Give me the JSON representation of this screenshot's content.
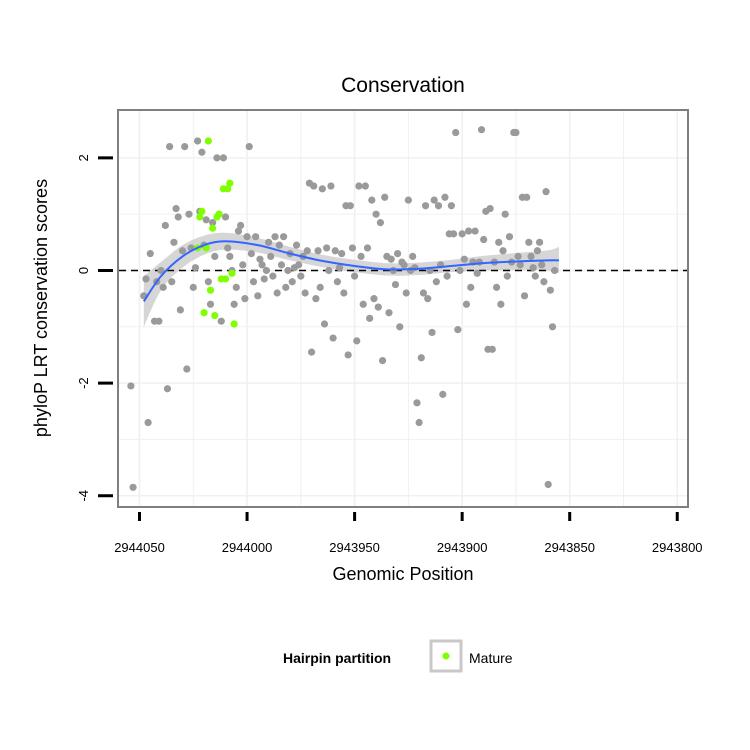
{
  "chart_data": {
    "type": "scatter",
    "title": "Conservation",
    "xlabel": "Genomic Position",
    "ylabel": "phyloP LRT conservation scores",
    "x_reversed": true,
    "xlim": [
      2944060,
      2943795
    ],
    "ylim": [
      -4.2,
      2.85
    ],
    "x_ticks": [
      2944050,
      2944000,
      2943950,
      2943900,
      2943850,
      2943800
    ],
    "x_tick_labels": [
      "2944050",
      "2944000",
      "2943950",
      "2943900",
      "2943850",
      "2943800"
    ],
    "y_ticks": [
      -4,
      -2,
      0,
      2
    ],
    "y_tick_labels": [
      "-4",
      "-2",
      "0",
      "2"
    ],
    "reference_line": {
      "y": 0,
      "style": "dashed",
      "color": "#000000"
    },
    "grid": true,
    "legend": {
      "title": "Hairpin partition",
      "placement": "bottom",
      "entries": [
        "Mature"
      ]
    },
    "colors": {
      "other": "#9a9a9a",
      "mature": "#7fff00",
      "smooth": "#3366ff",
      "band": "#c8c8c8",
      "panel_border": "#7f7f7f"
    },
    "series": [
      {
        "name": "",
        "color": "#9a9a9a",
        "points": [
          [
            2944048,
            -0.45
          ],
          [
            2944047,
            -0.15
          ],
          [
            2944046,
            -2.7
          ],
          [
            2944045,
            0.3
          ],
          [
            2944043,
            -0.9
          ],
          [
            2944042,
            -0.2
          ],
          [
            2944041,
            -0.9
          ],
          [
            2944040,
            0.0
          ],
          [
            2944039,
            -0.3
          ],
          [
            2944038,
            0.8
          ],
          [
            2944037,
            -2.1
          ],
          [
            2944036,
            2.2
          ],
          [
            2944035,
            -0.2
          ],
          [
            2944034,
            0.5
          ],
          [
            2944033,
            1.1
          ],
          [
            2944032,
            0.95
          ],
          [
            2944031,
            -0.7
          ],
          [
            2944030,
            0.35
          ],
          [
            2944029,
            2.2
          ],
          [
            2944028,
            -1.75
          ],
          [
            2944027,
            1.0
          ],
          [
            2944026,
            0.4
          ],
          [
            2944025,
            -0.3
          ],
          [
            2944024,
            0.05
          ],
          [
            2944023,
            2.3
          ],
          [
            2944022,
            1.05
          ],
          [
            2944021,
            2.1
          ],
          [
            2944020,
            0.45
          ],
          [
            2944019,
            0.9
          ],
          [
            2944018,
            -0.2
          ],
          [
            2944017,
            -0.6
          ],
          [
            2944016,
            0.85
          ],
          [
            2944015,
            0.25
          ],
          [
            2944014,
            2.0
          ],
          [
            2944013,
            1.0
          ],
          [
            2944012,
            -0.9
          ],
          [
            2944011,
            2.0
          ],
          [
            2944010,
            0.95
          ],
          [
            2944009,
            0.4
          ],
          [
            2944008,
            0.25
          ],
          [
            2944007,
            0.0
          ],
          [
            2944006,
            -0.6
          ],
          [
            2944005,
            -0.3
          ],
          [
            2944004,
            0.7
          ],
          [
            2944003,
            0.8
          ],
          [
            2944002,
            0.1
          ],
          [
            2944001,
            -0.5
          ],
          [
            2944000,
            0.6
          ],
          [
            2943999,
            2.2
          ],
          [
            2943998,
            0.3
          ],
          [
            2943997,
            -0.2
          ],
          [
            2943996,
            0.6
          ],
          [
            2943995,
            -0.45
          ],
          [
            2943994,
            0.2
          ],
          [
            2943993,
            0.1
          ],
          [
            2943992,
            -0.15
          ],
          [
            2943991,
            0.0
          ],
          [
            2943990,
            0.5
          ],
          [
            2943989,
            0.25
          ],
          [
            2943988,
            -0.1
          ],
          [
            2943987,
            0.6
          ],
          [
            2943986,
            -0.4
          ],
          [
            2943985,
            0.45
          ],
          [
            2943984,
            0.1
          ],
          [
            2943983,
            0.6
          ],
          [
            2943982,
            -0.3
          ],
          [
            2943981,
            0.0
          ],
          [
            2943980,
            0.3
          ],
          [
            2943979,
            -0.2
          ],
          [
            2943978,
            0.05
          ],
          [
            2943977,
            0.45
          ],
          [
            2943976,
            0.1
          ],
          [
            2943975,
            -0.1
          ],
          [
            2943974,
            0.25
          ],
          [
            2943973,
            -0.4
          ],
          [
            2943972,
            0.35
          ],
          [
            2943971,
            1.55
          ],
          [
            2943970,
            -1.45
          ],
          [
            2943969,
            1.5
          ],
          [
            2943968,
            -0.5
          ],
          [
            2943967,
            0.35
          ],
          [
            2943966,
            -0.3
          ],
          [
            2943965,
            1.45
          ],
          [
            2943964,
            -0.95
          ],
          [
            2943963,
            0.4
          ],
          [
            2943962,
            0.0
          ],
          [
            2943961,
            1.5
          ],
          [
            2943960,
            -1.2
          ],
          [
            2943959,
            0.35
          ],
          [
            2943958,
            -0.2
          ],
          [
            2943957,
            0.05
          ],
          [
            2943956,
            0.3
          ],
          [
            2943955,
            -0.4
          ],
          [
            2943954,
            1.15
          ],
          [
            2943953,
            -1.5
          ],
          [
            2943952,
            1.15
          ],
          [
            2943951,
            0.4
          ],
          [
            2943950,
            -0.1
          ],
          [
            2943949,
            -1.25
          ],
          [
            2943948,
            1.5
          ],
          [
            2943947,
            0.25
          ],
          [
            2943946,
            -0.6
          ],
          [
            2943945,
            1.5
          ],
          [
            2943944,
            0.4
          ],
          [
            2943943,
            -0.85
          ],
          [
            2943942,
            1.25
          ],
          [
            2943941,
            -0.5
          ],
          [
            2943940,
            1.0
          ],
          [
            2943939,
            -0.65
          ],
          [
            2943938,
            0.85
          ],
          [
            2943937,
            -1.6
          ],
          [
            2943936,
            1.3
          ],
          [
            2943935,
            0.25
          ],
          [
            2943934,
            -0.75
          ],
          [
            2943933,
            0.2
          ],
          [
            2943932,
            0.0
          ],
          [
            2943931,
            -0.25
          ],
          [
            2943930,
            0.3
          ],
          [
            2943929,
            -1.0
          ],
          [
            2943928,
            0.15
          ],
          [
            2943927,
            0.1
          ],
          [
            2943926,
            -0.4
          ],
          [
            2943925,
            1.25
          ],
          [
            2943924,
            0.0
          ],
          [
            2943923,
            0.25
          ],
          [
            2943922,
            0.05
          ],
          [
            2943921,
            -2.35
          ],
          [
            2943920,
            -2.7
          ],
          [
            2943919,
            -1.55
          ],
          [
            2943918,
            -0.4
          ],
          [
            2943917,
            1.15
          ],
          [
            2943916,
            -0.5
          ],
          [
            2943915,
            0.0
          ],
          [
            2943914,
            -1.1
          ],
          [
            2943913,
            1.25
          ],
          [
            2943912,
            -0.2
          ],
          [
            2943911,
            1.15
          ],
          [
            2943910,
            0.1
          ],
          [
            2943909,
            -2.2
          ],
          [
            2943908,
            1.3
          ],
          [
            2943907,
            -0.1
          ],
          [
            2943906,
            0.65
          ],
          [
            2943905,
            1.15
          ],
          [
            2943904,
            0.65
          ],
          [
            2943903,
            2.45
          ],
          [
            2943902,
            -1.05
          ],
          [
            2943901,
            0.0
          ],
          [
            2943900,
            0.65
          ],
          [
            2943899,
            0.2
          ],
          [
            2943898,
            -0.6
          ],
          [
            2943897,
            0.7
          ],
          [
            2943896,
            -0.3
          ],
          [
            2943895,
            0.15
          ],
          [
            2943894,
            0.7
          ],
          [
            2943893,
            -0.05
          ],
          [
            2943892,
            0.15
          ],
          [
            2943891,
            2.5
          ],
          [
            2943890,
            0.55
          ],
          [
            2943889,
            1.05
          ],
          [
            2943888,
            -1.4
          ],
          [
            2943887,
            1.1
          ],
          [
            2943886,
            -1.4
          ],
          [
            2943885,
            0.15
          ],
          [
            2943884,
            -0.3
          ],
          [
            2943883,
            0.5
          ],
          [
            2943882,
            -0.6
          ],
          [
            2943881,
            0.35
          ],
          [
            2943880,
            1.0
          ],
          [
            2943879,
            -0.1
          ],
          [
            2943878,
            0.6
          ],
          [
            2943877,
            0.15
          ],
          [
            2943876,
            2.45
          ],
          [
            2943875,
            2.45
          ],
          [
            2943874,
            0.25
          ],
          [
            2943873,
            0.1
          ],
          [
            2943872,
            1.3
          ],
          [
            2943871,
            -0.45
          ],
          [
            2943870,
            1.3
          ],
          [
            2943869,
            0.5
          ],
          [
            2943868,
            0.25
          ],
          [
            2943867,
            0.05
          ],
          [
            2943866,
            -0.1
          ],
          [
            2943865,
            0.35
          ],
          [
            2943864,
            0.5
          ],
          [
            2943863,
            0.1
          ],
          [
            2943862,
            -0.2
          ],
          [
            2943861,
            1.4
          ],
          [
            2943860,
            -3.8
          ],
          [
            2943859,
            -0.35
          ],
          [
            2943858,
            -1.0
          ],
          [
            2943857,
            0.0
          ],
          [
            2944053,
            -3.85
          ],
          [
            2944054,
            -2.05
          ]
        ]
      },
      {
        "name": "Mature",
        "color": "#7fff00",
        "points": [
          [
            2944022,
            0.95
          ],
          [
            2944021,
            1.05
          ],
          [
            2944020,
            -0.75
          ],
          [
            2944019,
            0.4
          ],
          [
            2944018,
            2.3
          ],
          [
            2944017,
            -0.35
          ],
          [
            2944016,
            0.75
          ],
          [
            2944015,
            -0.8
          ],
          [
            2944014,
            0.95
          ],
          [
            2944013,
            1.0
          ],
          [
            2944012,
            -0.15
          ],
          [
            2944011,
            1.45
          ],
          [
            2944010,
            -0.15
          ],
          [
            2944009,
            1.45
          ],
          [
            2944008,
            1.55
          ],
          [
            2944007,
            -0.05
          ],
          [
            2944006,
            -0.95
          ],
          [
            2944023,
            0.4
          ]
        ]
      }
    ],
    "smooth": {
      "color": "#3366ff",
      "x": [
        2944048,
        2944040,
        2944030,
        2944020,
        2944010,
        2943995,
        2943980,
        2943965,
        2943950,
        2943935,
        2943920,
        2943905,
        2943890,
        2943875,
        2943860,
        2943855
      ],
      "y": [
        -0.55,
        -0.1,
        0.25,
        0.45,
        0.52,
        0.45,
        0.3,
        0.17,
        0.08,
        0.02,
        0.03,
        0.08,
        0.13,
        0.16,
        0.18,
        0.18
      ],
      "lower": [
        -1.0,
        -0.35,
        0.05,
        0.28,
        0.37,
        0.32,
        0.18,
        0.06,
        -0.03,
        -0.09,
        -0.08,
        -0.03,
        0.0,
        0.01,
        0.0,
        -0.05
      ],
      "upper": [
        -0.1,
        0.15,
        0.45,
        0.62,
        0.67,
        0.58,
        0.42,
        0.28,
        0.19,
        0.13,
        0.14,
        0.19,
        0.26,
        0.31,
        0.36,
        0.42
      ]
    }
  }
}
